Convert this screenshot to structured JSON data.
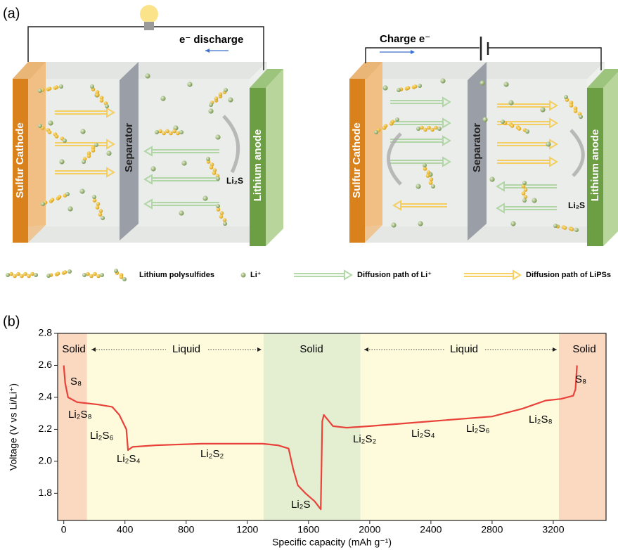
{
  "panel_a": {
    "label": "(a)",
    "discharge_label": "e⁻  discharge",
    "charge_label": "Charge  e⁻",
    "cells": [
      {
        "cathode": "Sulfur Cathode",
        "separator": "Separator",
        "anode": "Lithium anode",
        "product": "Li₂S"
      },
      {
        "cathode": "Sulfur Cathode",
        "separator": "Separator",
        "anode": "Lithium anode",
        "product": "Li₂S"
      }
    ],
    "legend": [
      "Lithium polysulfides",
      "Li⁺",
      "Diffusion path of Li⁺",
      "Diffusion path of LiPSs"
    ]
  },
  "chart_data": {
    "type": "line",
    "label": "(b)",
    "xlabel": "Specific capacity (mAh g⁻¹)",
    "ylabel": "Voltage (V vs Li/Li⁺)",
    "x": [
      0,
      9,
      28,
      87,
      225,
      317,
      363,
      409,
      420,
      450,
      600,
      900,
      1300,
      1400,
      1470,
      1500,
      1530,
      1580,
      1640,
      1680,
      1690,
      1700,
      1760,
      1850,
      2000,
      2400,
      2800,
      3000,
      3150,
      3250,
      3330,
      3345,
      3355
    ],
    "values": [
      2.6,
      2.49,
      2.4,
      2.37,
      2.355,
      2.34,
      2.29,
      2.2,
      2.07,
      2.09,
      2.1,
      2.11,
      2.11,
      2.1,
      2.08,
      1.95,
      1.85,
      1.8,
      1.75,
      1.7,
      2.25,
      2.29,
      2.22,
      2.21,
      2.22,
      2.25,
      2.28,
      2.33,
      2.38,
      2.39,
      2.41,
      2.45,
      2.6
    ],
    "color": "#e8423a",
    "xlim": [
      -40,
      3545
    ],
    "ylim": [
      1.63,
      2.8
    ],
    "xticks": [
      0,
      400,
      800,
      1200,
      1600,
      2000,
      2400,
      2800,
      3200
    ],
    "yticks": [
      1.8,
      {
        "value": 2,
        "label": "2.0"
      },
      2.2,
      2.4,
      2.6,
      2.8
    ],
    "regions": [
      {
        "label": "Solid",
        "start": -40,
        "end": 152,
        "color": "#fbd9c0"
      },
      {
        "label": "Liquid",
        "start": 152,
        "end": 1306,
        "color": "#fdfbdc"
      },
      {
        "label": "Solid",
        "start": 1306,
        "end": 1940,
        "color": "#e3efd0"
      },
      {
        "label": "Liquid",
        "start": 1940,
        "end": 3237,
        "color": "#fdfbdc"
      },
      {
        "label": "Solid",
        "start": 3237,
        "end": 3545,
        "color": "#fbd9c0"
      }
    ],
    "annotations": [
      "S₈",
      "Li₂S₈",
      "Li₂S₆",
      "Li₂S₄",
      "Li₂S₂",
      "Li₂S",
      "Li₂S₂",
      "Li₂S₄",
      "Li₂S₆",
      "Li₂S₈",
      "S₈"
    ]
  }
}
